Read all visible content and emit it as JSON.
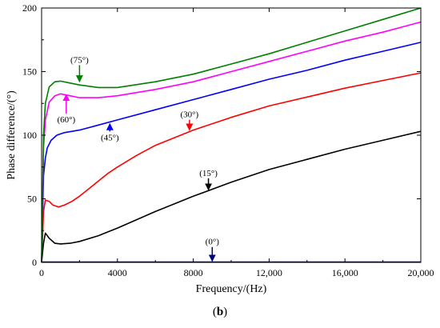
{
  "chart_data": {
    "type": "line",
    "xlabel": "Frequency/(Hz)",
    "ylabel": "Phase difference/(°)",
    "xlim": [
      0,
      20000
    ],
    "ylim": [
      0,
      200
    ],
    "x_ticks": [
      0,
      4000,
      8000,
      12000,
      16000,
      20000
    ],
    "x_tick_labels": [
      "0",
      "4000",
      "8000",
      "12,000",
      "16,000",
      "20,000"
    ],
    "y_ticks": [
      0,
      50,
      100,
      150,
      200
    ],
    "y_tick_labels": [
      "0",
      "50",
      "100",
      "150",
      "200"
    ],
    "grid": false,
    "series": [
      {
        "name": "(0°)",
        "color": "#000080",
        "x": [
          0,
          20000
        ],
        "y": [
          0.3,
          0.3
        ]
      },
      {
        "name": "(15°)",
        "color": "#000000",
        "x": [
          0,
          100,
          200,
          400,
          700,
          1000,
          1500,
          2000,
          3000,
          4000,
          6000,
          8000,
          10000,
          12000,
          14000,
          16000,
          18000,
          20000
        ],
        "y": [
          0,
          15,
          23,
          19,
          15,
          14.5,
          15,
          16.5,
          21,
          27,
          40,
          52,
          63,
          73,
          81,
          89,
          96,
          103
        ]
      },
      {
        "name": "(30°)",
        "color": "#ff0000",
        "x": [
          0,
          100,
          200,
          400,
          600,
          900,
          1200,
          1600,
          2000,
          2500,
          3000,
          3500,
          4000,
          5000,
          6000,
          8000,
          10000,
          12000,
          14000,
          16000,
          18000,
          20000
        ],
        "y": [
          0,
          40,
          49,
          48,
          45,
          43.5,
          45,
          48,
          52,
          58,
          64,
          70,
          75,
          84,
          92,
          104,
          114,
          123,
          130,
          137,
          143,
          149
        ]
      },
      {
        "name": "(45°)",
        "color": "#0000ff",
        "x": [
          0,
          100,
          200,
          300,
          500,
          800,
          1200,
          2000,
          3000,
          4000,
          6000,
          8000,
          10000,
          12000,
          14000,
          16000,
          18000,
          20000
        ],
        "y": [
          0,
          68,
          82,
          90,
          96,
          100,
          102,
          104,
          108,
          112,
          120,
          128,
          136,
          144,
          151,
          159,
          166,
          173
        ]
      },
      {
        "name": "(60°)",
        "color": "#ff00ff",
        "x": [
          0,
          100,
          200,
          400,
          700,
          1000,
          1500,
          2000,
          3000,
          4000,
          6000,
          8000,
          10000,
          12000,
          14000,
          16000,
          18000,
          20000
        ],
        "y": [
          0,
          90,
          112,
          126,
          131,
          132.5,
          131,
          129.5,
          129.5,
          131,
          136,
          142,
          150,
          158,
          166,
          174,
          181,
          189
        ]
      },
      {
        "name": "(75°)",
        "color": "#008000",
        "x": [
          0,
          100,
          200,
          400,
          700,
          1000,
          1500,
          2000,
          3000,
          4000,
          6000,
          8000,
          10000,
          12000,
          14000,
          16000,
          18000,
          20000
        ],
        "y": [
          0,
          100,
          125,
          138,
          142,
          142.5,
          141,
          139.5,
          137.5,
          137.5,
          142,
          148,
          156,
          164,
          173,
          182,
          191,
          200
        ]
      }
    ],
    "annotations": [
      {
        "text": "(75°)",
        "text_x": 2000,
        "text_y": 157,
        "arrow_x": 2000,
        "arrow_y": 142,
        "color": "#008000"
      },
      {
        "text": "(60°)",
        "text_x": 1300,
        "text_y": 110,
        "arrow_x": 1300,
        "arrow_y": 132,
        "color": "#ff00ff"
      },
      {
        "text": "(45°)",
        "text_x": 3600,
        "text_y": 96,
        "arrow_x": 3600,
        "arrow_y": 109,
        "color": "#0000ff"
      },
      {
        "text": "(30°)",
        "text_x": 7800,
        "text_y": 114,
        "arrow_x": 7800,
        "arrow_y": 104,
        "color": "#ff0000"
      },
      {
        "text": "(15°)",
        "text_x": 8800,
        "text_y": 68,
        "arrow_x": 8800,
        "arrow_y": 57,
        "color": "#000000"
      },
      {
        "text": "(0°)",
        "text_x": 9000,
        "text_y": 14,
        "arrow_x": 9000,
        "arrow_y": 1,
        "color": "#000080"
      }
    ]
  },
  "caption": {
    "open": "(",
    "letter": "b",
    "close": ")"
  }
}
